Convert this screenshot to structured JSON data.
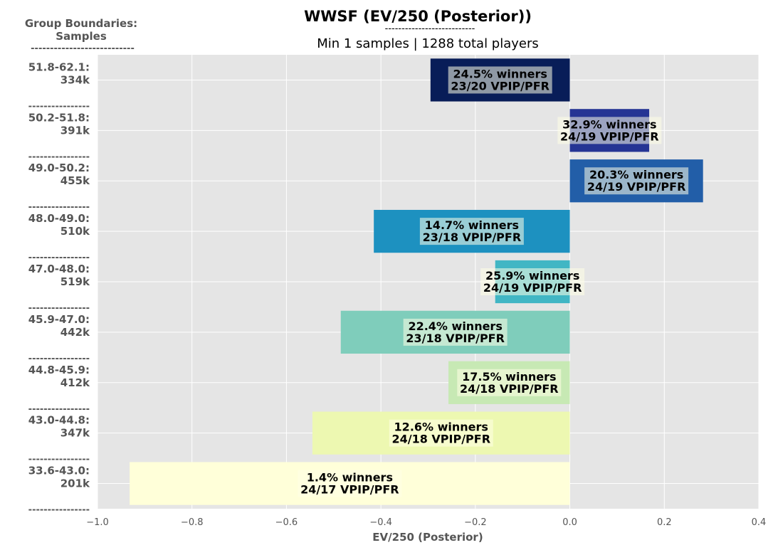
{
  "chart_data": {
    "type": "bar",
    "orientation": "horizontal",
    "title": "WWSF (EV/250 (Posterior))",
    "title_underline": "---------------------------",
    "subtitle": "Min 1 samples | 1288 total players",
    "y_header": "Group Boundaries:\nSamples",
    "y_header_lines": [
      "Group Boundaries:",
      "Samples"
    ],
    "y_header_underline": "---------------------------",
    "separator": "----------------",
    "xlabel": "EV/250 (Posterior)",
    "xlim": [
      -1.0,
      0.4
    ],
    "xticks": [
      -1.0,
      -0.8,
      -0.6,
      -0.4,
      -0.2,
      0.0,
      0.2,
      0.4
    ],
    "xtick_labels": [
      "−1.0",
      "−0.8",
      "−0.6",
      "−0.4",
      "−0.2",
      "0.0",
      "0.2",
      "0.4"
    ],
    "grid": true,
    "background": "#e5e5e5",
    "bars": [
      {
        "range": "51.8-62.1:",
        "samples": "334k",
        "value": -0.295,
        "winners": "24.5% winners",
        "vpip_pfr": "23/20 VPIP/PFR",
        "color": "#081d58"
      },
      {
        "range": "50.2-51.8:",
        "samples": "391k",
        "value": 0.168,
        "winners": "32.9% winners",
        "vpip_pfr": "24/19 VPIP/PFR",
        "color": "#253494"
      },
      {
        "range": "49.0-50.2:",
        "samples": "455k",
        "value": 0.282,
        "winners": "20.3% winners",
        "vpip_pfr": "24/19 VPIP/PFR",
        "color": "#225ea8"
      },
      {
        "range": "48.0-49.0:",
        "samples": "510k",
        "value": -0.415,
        "winners": "14.7% winners",
        "vpip_pfr": "23/18 VPIP/PFR",
        "color": "#1d91c0"
      },
      {
        "range": "47.0-48.0:",
        "samples": "519k",
        "value": -0.158,
        "winners": "25.9% winners",
        "vpip_pfr": "24/19 VPIP/PFR",
        "color": "#41b6c4"
      },
      {
        "range": "45.9-47.0:",
        "samples": "442k",
        "value": -0.485,
        "winners": "22.4% winners",
        "vpip_pfr": "23/18 VPIP/PFR",
        "color": "#7fcdbb"
      },
      {
        "range": "44.8-45.9:",
        "samples": "412k",
        "value": -0.257,
        "winners": "17.5% winners",
        "vpip_pfr": "24/18 VPIP/PFR",
        "color": "#c7e9b4"
      },
      {
        "range": "43.0-44.8:",
        "samples": "347k",
        "value": -0.545,
        "winners": "12.6% winners",
        "vpip_pfr": "24/18 VPIP/PFR",
        "color": "#edf8b1"
      },
      {
        "range": "33.6-43.0:",
        "samples": "201k",
        "value": -0.932,
        "winners": "1.4% winners",
        "vpip_pfr": "24/17 VPIP/PFR",
        "color": "#ffffd9"
      }
    ]
  }
}
